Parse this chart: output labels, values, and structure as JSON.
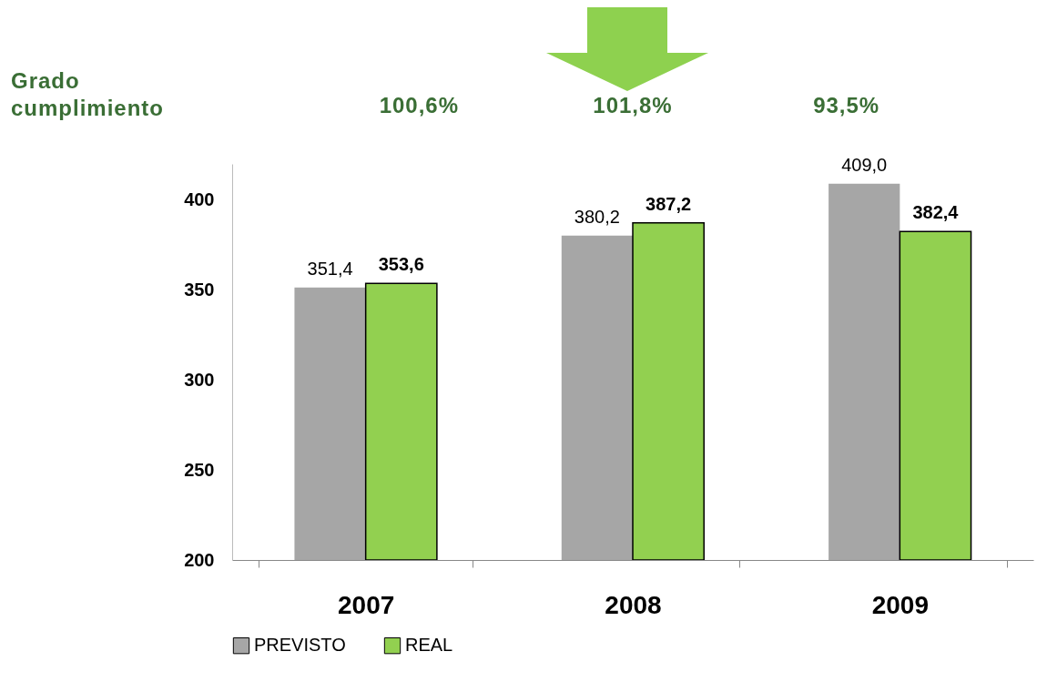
{
  "chart_data": {
    "type": "bar",
    "categories": [
      "2007",
      "2008",
      "2009"
    ],
    "series": [
      {
        "name": "PREVISTO",
        "color": "#a6a6a6",
        "values": [
          351.4,
          380.2,
          409.0
        ],
        "value_labels": [
          "351,4",
          "380,2",
          "409,0"
        ]
      },
      {
        "name": "REAL",
        "color": "#92d050",
        "values": [
          353.6,
          387.2,
          382.4
        ],
        "value_labels": [
          "353,6",
          "387,2",
          "382,4"
        ]
      }
    ],
    "ylim": [
      200,
      420
    ],
    "yticks": [
      200,
      250,
      300,
      350,
      400
    ],
    "grid": false,
    "legend": "bottom",
    "annotations": [
      "Grado cumplimiento",
      "100,6%",
      "101,8%",
      "93,5%"
    ]
  }
}
